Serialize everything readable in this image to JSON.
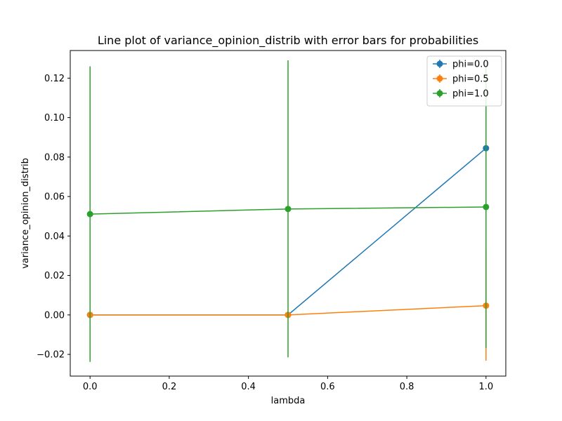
{
  "chart_data": {
    "type": "line",
    "title": "Line plot of variance_opinion_distrib with error bars for probabilities",
    "xlabel": "lambda",
    "ylabel": "variance_opinion_distrib",
    "xlim": [
      -0.05,
      1.05
    ],
    "ylim": [
      -0.031,
      0.134
    ],
    "xticks": [
      0.0,
      0.2,
      0.4,
      0.6,
      0.8,
      1.0
    ],
    "xtick_labels": [
      "0.0",
      "0.2",
      "0.4",
      "0.6",
      "0.8",
      "1.0"
    ],
    "yticks": [
      -0.02,
      0.0,
      0.02,
      0.04,
      0.06,
      0.08,
      0.1,
      0.12
    ],
    "ytick_labels": [
      "−0.02",
      "0.00",
      "0.02",
      "0.04",
      "0.06",
      "0.08",
      "0.10",
      "0.12"
    ],
    "grid": false,
    "legend_position": "top-right",
    "series": [
      {
        "name": "phi=0.0",
        "color": "#1f77b4",
        "x": [
          0.0,
          0.5,
          1.0
        ],
        "y": [
          0.0,
          0.0,
          0.0845
        ],
        "err_low": [
          0.0,
          0.0,
          0.0
        ],
        "err_high": [
          0.0,
          0.0,
          0.0
        ]
      },
      {
        "name": "phi=0.5",
        "color": "#ff7f0e",
        "x": [
          0.0,
          0.5,
          1.0
        ],
        "y": [
          0.0,
          0.0,
          0.0047
        ],
        "err_low": [
          0.0,
          0.0,
          -0.0232
        ],
        "err_high": [
          0.0,
          0.0,
          0.0326
        ]
      },
      {
        "name": "phi=1.0",
        "color": "#2ca02c",
        "x": [
          0.0,
          0.5,
          1.0
        ],
        "y": [
          0.0511,
          0.0537,
          0.0547
        ],
        "err_low": [
          -0.0238,
          -0.0215,
          -0.0168
        ],
        "err_high": [
          0.126,
          0.129,
          0.1265
        ]
      }
    ]
  }
}
